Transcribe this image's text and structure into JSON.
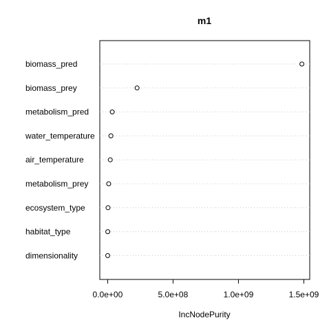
{
  "chart_data": {
    "type": "scatter",
    "variant": "dotchart",
    "title": "m1",
    "xlabel": "IncNodePurity",
    "ylabel": "",
    "categories": [
      "biomass_pred",
      "biomass_prey",
      "metabolism_pred",
      "water_temperature",
      "air_temperature",
      "metabolism_prey",
      "ecosystem_type",
      "habitat_type",
      "dimensionality"
    ],
    "values": [
      1485000000,
      225000000,
      35000000,
      25000000,
      20000000,
      8000000,
      3000000,
      1000000,
      500000
    ],
    "xlim": [
      -60000000,
      1545000000
    ],
    "x_ticks": [
      0,
      500000000,
      1000000000,
      1500000000
    ],
    "x_tick_labels": [
      "0.0e+00",
      "5.0e+08",
      "1.0e+09",
      "1.5e+09"
    ],
    "grid": "dotted horizontal guide lines",
    "marker": "open circle",
    "legend": "none"
  }
}
